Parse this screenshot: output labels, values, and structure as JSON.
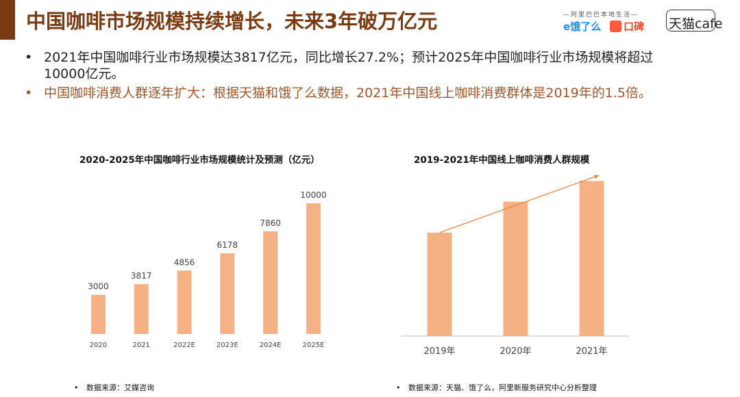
{
  "header": {
    "title": "中国咖啡市场规模持续增长，未来3年破万亿元",
    "logos": {
      "alibaba_line": "—阿里巴巴本地生活—",
      "eleme": "饿了么",
      "koubei": "口碑",
      "tmall": "天猫cafe"
    }
  },
  "bullets": [
    {
      "symbol": "•",
      "text": "2021年中国咖啡行业市场规模达3817亿元，同比增长27.2%；预计2025年中国咖啡行业市场规模将超过10000亿元。"
    },
    {
      "symbol": "•",
      "text": "中国咖啡消费人群逐年扩大：根据天猫和饿了么数据，2021年中国线上咖啡消费群体是2019年的1.5倍。"
    }
  ],
  "colors": {
    "bar": "#f5b183",
    "brown": "#7a3b12",
    "arrow": "#ed7d31"
  },
  "chart_data": [
    {
      "type": "bar",
      "title": "2020-2025年中国咖啡行业市场规模统计及预测（亿元）",
      "categories": [
        "2020",
        "2021",
        "2022E",
        "2023E",
        "2024E",
        "2025E"
      ],
      "values": [
        3000,
        3817,
        4856,
        6178,
        7860,
        10000
      ],
      "value_labels": [
        "3000",
        "3817",
        "4856",
        "6178",
        "7860",
        "10000"
      ],
      "ylim": [
        0,
        11000
      ],
      "grid": false,
      "source_note": "数据来源：艾媒咨询"
    },
    {
      "type": "bar",
      "title": "2019-2021年中国线上咖啡消费人群规模",
      "categories": [
        "2019年",
        "2020年",
        "2021年"
      ],
      "values": [
        1.0,
        1.3,
        1.5
      ],
      "ylim": [
        0,
        1.8
      ],
      "grid": false,
      "trend_arrow": true,
      "source_note": "数据来源：天猫、饿了么，阿里新服务研究中心分析整理"
    }
  ]
}
